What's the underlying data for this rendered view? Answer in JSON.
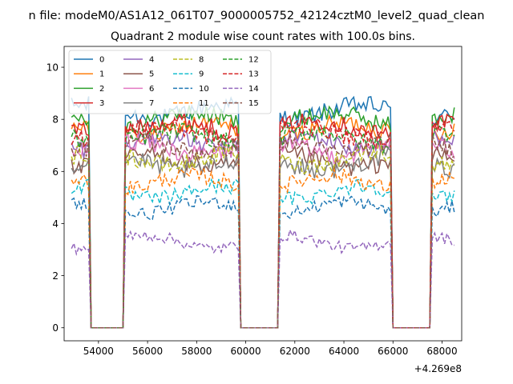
{
  "figure": {
    "suptitle": "n file: modeM0/AS1A12_061T07_9000005752_42124cztM0_level2_quad_clean",
    "offset_label": "+4.269e8"
  },
  "chart_data": {
    "type": "line",
    "title": "Quadrant 2 module wise count rates with 100.0s bins.",
    "xlabel": "",
    "ylabel": "",
    "x_offset": 426900000,
    "x_range": [
      52900,
      68500
    ],
    "x_step": 100,
    "xlim": [
      52600,
      68800
    ],
    "ylim": [
      -0.5,
      10.8
    ],
    "x_ticks": [
      54000,
      56000,
      58000,
      60000,
      62000,
      64000,
      66000,
      68000
    ],
    "x_tick_labels": [
      "54000",
      "56000",
      "58000",
      "60000",
      "62000",
      "64000",
      "66000",
      "68000"
    ],
    "y_ticks": [
      0,
      2,
      4,
      6,
      8,
      10
    ],
    "y_tick_labels": [
      "0",
      "2",
      "4",
      "6",
      "8",
      "10"
    ],
    "grid": false,
    "legend_position": "top-left",
    "legend_columns": 4,
    "on_intervals": [
      [
        52900,
        53600
      ],
      [
        55100,
        59750
      ],
      [
        61350,
        65950
      ],
      [
        67600,
        68500
      ]
    ],
    "series": [
      {
        "name": "0",
        "level": 8.3,
        "noise": 0.35,
        "color": "#1f77b4",
        "dash": "solid"
      },
      {
        "name": "1",
        "level": 7.6,
        "noise": 0.35,
        "color": "#ff7f0e",
        "dash": "solid"
      },
      {
        "name": "2",
        "level": 8.0,
        "noise": 0.35,
        "color": "#2ca02c",
        "dash": "solid"
      },
      {
        "name": "3",
        "level": 7.7,
        "noise": 0.35,
        "color": "#d62728",
        "dash": "solid"
      },
      {
        "name": "4",
        "level": 7.1,
        "noise": 0.35,
        "color": "#9467bd",
        "dash": "solid"
      },
      {
        "name": "5",
        "level": 6.4,
        "noise": 0.35,
        "color": "#8c564b",
        "dash": "solid"
      },
      {
        "name": "6",
        "level": 6.9,
        "noise": 0.35,
        "color": "#e377c2",
        "dash": "solid"
      },
      {
        "name": "7",
        "level": 6.3,
        "noise": 0.35,
        "color": "#7f7f7f",
        "dash": "solid"
      },
      {
        "name": "8",
        "level": 6.5,
        "noise": 0.35,
        "color": "#bcbd22",
        "dash": "dashed"
      },
      {
        "name": "9",
        "level": 5.2,
        "noise": 0.3,
        "color": "#17becf",
        "dash": "dashed"
      },
      {
        "name": "10",
        "level": 4.6,
        "noise": 0.25,
        "color": "#1f77b4",
        "dash": "dashed"
      },
      {
        "name": "11",
        "level": 5.6,
        "noise": 0.3,
        "color": "#ff7f0e",
        "dash": "dashed"
      },
      {
        "name": "12",
        "level": 7.3,
        "noise": 0.35,
        "color": "#2ca02c",
        "dash": "dashed"
      },
      {
        "name": "13",
        "level": 7.5,
        "noise": 0.35,
        "color": "#d62728",
        "dash": "dashed"
      },
      {
        "name": "14",
        "level": 3.3,
        "noise": 0.22,
        "color": "#9467bd",
        "dash": "dashed"
      },
      {
        "name": "15",
        "level": 7.0,
        "noise": 0.35,
        "color": "#8c564b",
        "dash": "dashed"
      }
    ]
  }
}
